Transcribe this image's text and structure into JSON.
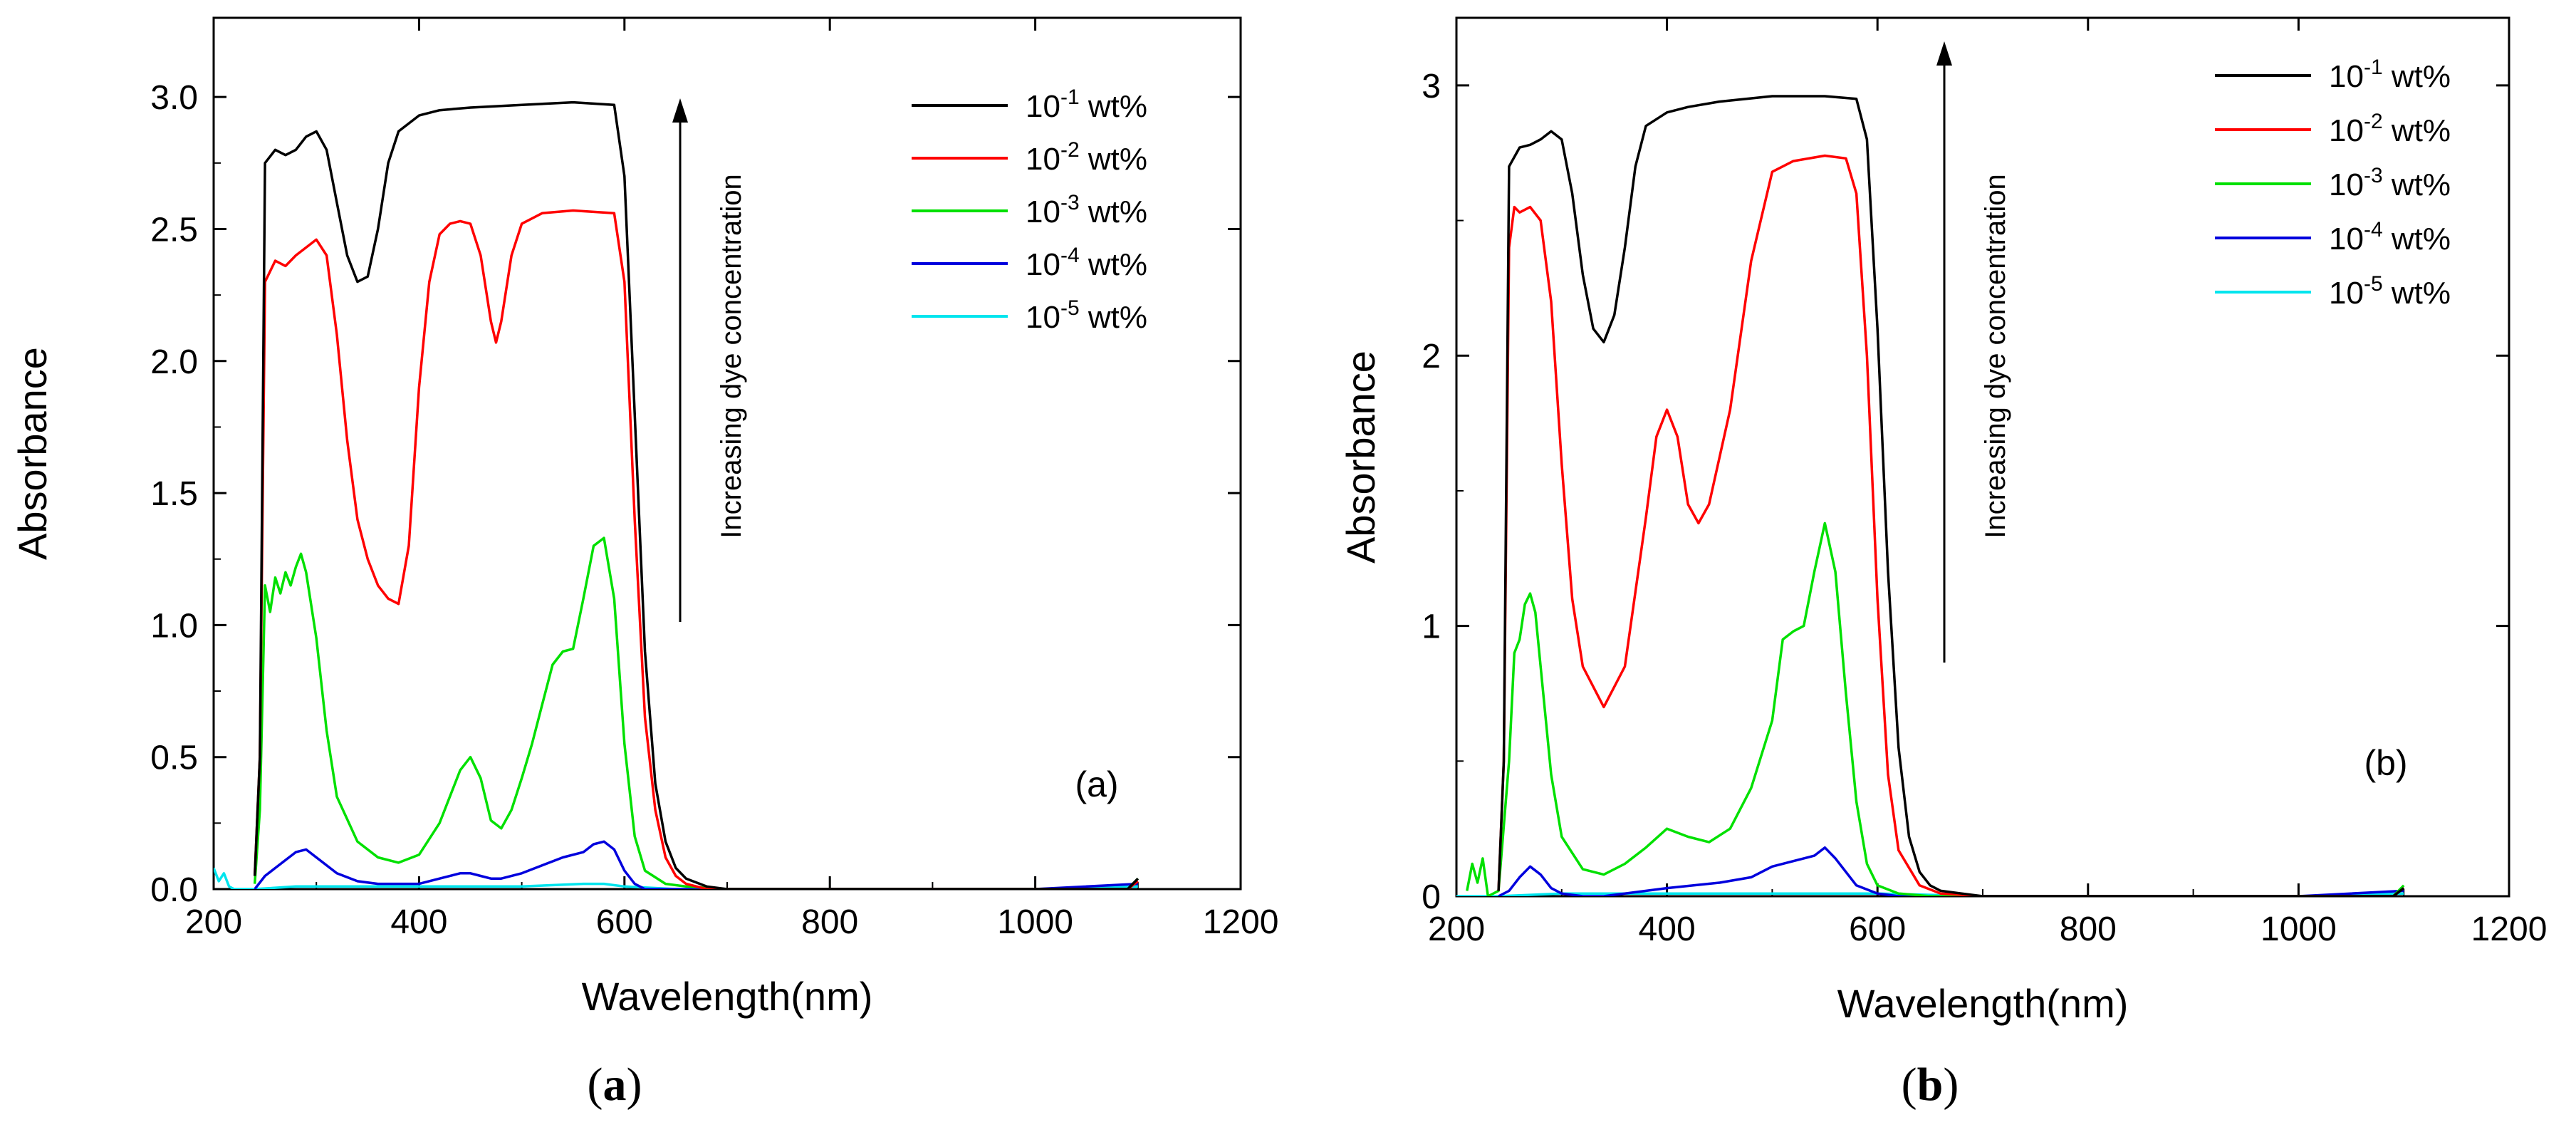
{
  "captions": [
    {
      "open": "(",
      "tag": "a",
      "close": ")"
    },
    {
      "open": "(",
      "tag": "b",
      "close": ")"
    }
  ],
  "colors": {
    "1e-1": "#000000",
    "1e-2": "#ff0000",
    "1e-3": "#00e000",
    "1e-4": "#0000dd",
    "1e-5": "#00e5ee"
  },
  "chart_data": [
    {
      "type": "line",
      "panel_label": "(a)",
      "xlabel": "Wavelength(nm)",
      "ylabel": "Absorbance",
      "xlim": [
        200,
        1200
      ],
      "ylim": [
        0,
        3.3
      ],
      "xticks": [
        200,
        400,
        600,
        800,
        1000,
        1200
      ],
      "yticks": [
        0.0,
        0.5,
        1.0,
        1.5,
        2.0,
        2.5,
        3.0
      ],
      "ytick_labels": [
        "0.0",
        "0.5",
        "1.0",
        "1.5",
        "2.0",
        "2.5",
        "3.0"
      ],
      "annotation": "Increasing dye concentration",
      "legend_position": "top-right",
      "series": [
        {
          "name": "10-1 wt%",
          "base": "10",
          "exp": "-1",
          "unit": " wt%",
          "color_key": "1e-1",
          "x": [
            240,
            245,
            250,
            260,
            270,
            280,
            290,
            300,
            310,
            320,
            330,
            340,
            350,
            360,
            370,
            380,
            400,
            420,
            450,
            500,
            550,
            590,
            600,
            610,
            620,
            630,
            640,
            650,
            660,
            680,
            700,
            800,
            1000,
            1090,
            1100
          ],
          "y": [
            0.05,
            0.5,
            2.75,
            2.8,
            2.78,
            2.8,
            2.85,
            2.87,
            2.8,
            2.6,
            2.4,
            2.3,
            2.32,
            2.5,
            2.75,
            2.87,
            2.93,
            2.95,
            2.96,
            2.97,
            2.98,
            2.97,
            2.7,
            1.8,
            0.9,
            0.4,
            0.18,
            0.08,
            0.04,
            0.01,
            0.0,
            0.0,
            0.0,
            0.0,
            0.04
          ]
        },
        {
          "name": "10-2 wt%",
          "base": "10",
          "exp": "-2",
          "unit": " wt%",
          "color_key": "1e-2",
          "x": [
            240,
            245,
            250,
            260,
            270,
            280,
            290,
            300,
            310,
            320,
            330,
            340,
            350,
            360,
            370,
            380,
            390,
            400,
            410,
            420,
            430,
            440,
            450,
            460,
            470,
            475,
            480,
            490,
            500,
            520,
            550,
            590,
            600,
            610,
            620,
            630,
            640,
            650,
            660,
            680,
            700,
            800,
            1000,
            1090,
            1100
          ],
          "y": [
            0.05,
            0.5,
            2.3,
            2.38,
            2.36,
            2.4,
            2.43,
            2.46,
            2.4,
            2.1,
            1.7,
            1.4,
            1.25,
            1.15,
            1.1,
            1.08,
            1.3,
            1.9,
            2.3,
            2.48,
            2.52,
            2.53,
            2.52,
            2.4,
            2.15,
            2.07,
            2.15,
            2.4,
            2.52,
            2.56,
            2.57,
            2.56,
            2.3,
            1.4,
            0.65,
            0.3,
            0.12,
            0.05,
            0.02,
            0.0,
            0.0,
            0.0,
            0.0,
            0.0,
            0.03
          ]
        },
        {
          "name": "10-3 wt%",
          "base": "10",
          "exp": "-3",
          "unit": " wt%",
          "color_key": "1e-3",
          "x": [
            240,
            245,
            250,
            255,
            260,
            265,
            270,
            275,
            280,
            285,
            290,
            300,
            310,
            320,
            340,
            360,
            380,
            400,
            420,
            440,
            450,
            460,
            470,
            480,
            490,
            500,
            510,
            520,
            530,
            540,
            550,
            560,
            570,
            580,
            590,
            600,
            610,
            620,
            640,
            660,
            700,
            800,
            1000,
            1090,
            1100
          ],
          "y": [
            0.02,
            0.3,
            1.15,
            1.05,
            1.18,
            1.12,
            1.2,
            1.15,
            1.22,
            1.27,
            1.2,
            0.95,
            0.6,
            0.35,
            0.18,
            0.12,
            0.1,
            0.13,
            0.25,
            0.45,
            0.5,
            0.42,
            0.26,
            0.23,
            0.3,
            0.42,
            0.55,
            0.7,
            0.85,
            0.9,
            0.91,
            1.1,
            1.3,
            1.33,
            1.1,
            0.55,
            0.2,
            0.07,
            0.02,
            0.01,
            0.0,
            0.0,
            0.0,
            0.0,
            0.04
          ]
        },
        {
          "name": "10-4 wt%",
          "base": "10",
          "exp": "-4",
          "unit": " wt%",
          "color_key": "1e-4",
          "x": [
            240,
            250,
            260,
            270,
            280,
            290,
            300,
            320,
            340,
            360,
            380,
            400,
            420,
            440,
            450,
            460,
            470,
            480,
            500,
            520,
            540,
            560,
            570,
            580,
            590,
            600,
            610,
            620,
            640,
            700,
            800,
            1000,
            1100
          ],
          "y": [
            0.0,
            0.05,
            0.08,
            0.11,
            0.14,
            0.15,
            0.12,
            0.06,
            0.03,
            0.02,
            0.02,
            0.02,
            0.04,
            0.06,
            0.06,
            0.05,
            0.04,
            0.04,
            0.06,
            0.09,
            0.12,
            0.14,
            0.17,
            0.18,
            0.15,
            0.07,
            0.02,
            0.0,
            0.0,
            0.0,
            0.0,
            0.0,
            0.02
          ]
        },
        {
          "name": "10-5 wt%",
          "base": "10",
          "exp": "-5",
          "unit": " wt%",
          "color_key": "1e-5",
          "x": [
            200,
            205,
            210,
            215,
            220,
            240,
            280,
            300,
            400,
            500,
            560,
            580,
            600,
            650,
            800,
            1000,
            1100
          ],
          "y": [
            0.08,
            0.03,
            0.06,
            0.01,
            0.0,
            0.0,
            0.01,
            0.01,
            0.01,
            0.01,
            0.02,
            0.02,
            0.01,
            0.0,
            0.0,
            0.0,
            0.01
          ]
        }
      ]
    },
    {
      "type": "line",
      "panel_label": "(b)",
      "xlabel": "Wavelength(nm)",
      "ylabel": "Absorbance",
      "xlim": [
        200,
        1200
      ],
      "ylim": [
        0,
        3.25
      ],
      "xticks": [
        200,
        400,
        600,
        800,
        1000,
        1200
      ],
      "yticks": [
        0,
        1,
        2,
        3
      ],
      "ytick_labels": [
        "0",
        "1",
        "2",
        "3"
      ],
      "annotation": "Increasing dye concentration",
      "legend_position": "top-right",
      "series": [
        {
          "name": "10-1 wt%",
          "base": "10",
          "exp": "-1",
          "unit": " wt%",
          "color_key": "1e-1",
          "x": [
            240,
            245,
            250,
            260,
            270,
            280,
            290,
            300,
            310,
            320,
            330,
            340,
            350,
            360,
            370,
            380,
            400,
            420,
            450,
            500,
            550,
            580,
            590,
            600,
            610,
            620,
            630,
            640,
            650,
            660,
            680,
            700,
            800,
            1000,
            1090,
            1100
          ],
          "y": [
            0.02,
            0.5,
            2.7,
            2.77,
            2.78,
            2.8,
            2.83,
            2.8,
            2.6,
            2.3,
            2.1,
            2.05,
            2.15,
            2.4,
            2.7,
            2.85,
            2.9,
            2.92,
            2.94,
            2.96,
            2.96,
            2.95,
            2.8,
            2.1,
            1.2,
            0.55,
            0.22,
            0.09,
            0.04,
            0.02,
            0.01,
            0.0,
            0.0,
            0.0,
            0.0,
            0.03
          ]
        },
        {
          "name": "10-2 wt%",
          "base": "10",
          "exp": "-2",
          "unit": " wt%",
          "color_key": "1e-2",
          "x": [
            240,
            245,
            250,
            255,
            260,
            270,
            280,
            290,
            300,
            310,
            320,
            340,
            360,
            380,
            390,
            400,
            410,
            420,
            430,
            440,
            460,
            480,
            500,
            520,
            550,
            570,
            580,
            590,
            600,
            610,
            620,
            640,
            660,
            700,
            800,
            1000,
            1090,
            1100
          ],
          "y": [
            0.02,
            0.5,
            2.4,
            2.55,
            2.53,
            2.55,
            2.5,
            2.2,
            1.6,
            1.1,
            0.85,
            0.7,
            0.85,
            1.4,
            1.7,
            1.8,
            1.7,
            1.45,
            1.38,
            1.45,
            1.8,
            2.35,
            2.68,
            2.72,
            2.74,
            2.73,
            2.6,
            2.0,
            1.1,
            0.45,
            0.17,
            0.04,
            0.01,
            0.0,
            0.0,
            0.0,
            0.0,
            0.03
          ]
        },
        {
          "name": "10-3 wt%",
          "base": "10",
          "exp": "-3",
          "unit": " wt%",
          "color_key": "1e-3",
          "x": [
            210,
            215,
            220,
            225,
            230,
            240,
            250,
            255,
            260,
            265,
            270,
            275,
            280,
            290,
            300,
            320,
            340,
            360,
            380,
            400,
            420,
            440,
            460,
            480,
            500,
            510,
            520,
            530,
            540,
            550,
            560,
            570,
            580,
            590,
            600,
            620,
            650,
            700,
            800,
            1000,
            1090,
            1100
          ],
          "y": [
            0.02,
            0.12,
            0.05,
            0.14,
            0.0,
            0.02,
            0.5,
            0.9,
            0.95,
            1.08,
            1.12,
            1.05,
            0.85,
            0.45,
            0.22,
            0.1,
            0.08,
            0.12,
            0.18,
            0.25,
            0.22,
            0.2,
            0.25,
            0.4,
            0.65,
            0.95,
            0.98,
            1.0,
            1.2,
            1.38,
            1.2,
            0.75,
            0.35,
            0.12,
            0.04,
            0.01,
            0.0,
            0.0,
            0.0,
            0.0,
            0.0,
            0.04
          ]
        },
        {
          "name": "10-4 wt%",
          "base": "10",
          "exp": "-4",
          "unit": " wt%",
          "color_key": "1e-4",
          "x": [
            240,
            250,
            260,
            270,
            280,
            290,
            300,
            320,
            340,
            400,
            450,
            480,
            500,
            520,
            540,
            550,
            560,
            580,
            600,
            620,
            700,
            800,
            1000,
            1100
          ],
          "y": [
            0.0,
            0.02,
            0.07,
            0.11,
            0.08,
            0.03,
            0.01,
            0.0,
            0.0,
            0.03,
            0.05,
            0.07,
            0.11,
            0.13,
            0.15,
            0.18,
            0.14,
            0.04,
            0.01,
            0.0,
            0.0,
            0.0,
            0.0,
            0.02
          ]
        },
        {
          "name": "10-5 wt%",
          "base": "10",
          "exp": "-5",
          "unit": " wt%",
          "color_key": "1e-5",
          "x": [
            200,
            240,
            300,
            400,
            500,
            550,
            600,
            700,
            800,
            1000,
            1100
          ],
          "y": [
            0.0,
            0.0,
            0.01,
            0.01,
            0.01,
            0.01,
            0.01,
            0.0,
            0.0,
            0.0,
            0.01
          ]
        }
      ]
    }
  ]
}
